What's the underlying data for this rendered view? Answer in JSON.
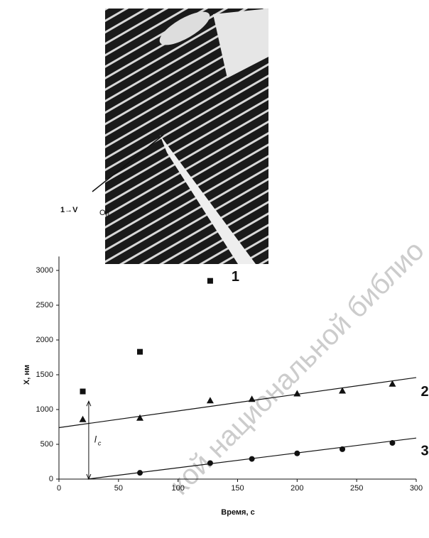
{
  "chart_data": {
    "type": "scatter",
    "image_label": "1→V",
    "image_label_sub": "O||",
    "x_label": "Время, c",
    "y_label": "X, нм",
    "xlim": [
      0,
      300
    ],
    "ylim": [
      0,
      3200
    ],
    "xticks": [
      0,
      50,
      100,
      150,
      200,
      250,
      300
    ],
    "yticks": [
      0,
      500,
      1000,
      1500,
      2000,
      2500,
      3000
    ],
    "series": [
      {
        "name": "1",
        "marker": "square",
        "color": "#111",
        "x": [
          20,
          68,
          127
        ],
        "values": [
          1260,
          1830,
          2850
        ]
      },
      {
        "name": "2",
        "marker": "triangle",
        "color": "#111",
        "x": [
          20,
          68,
          127,
          162,
          200,
          238,
          280
        ],
        "values": [
          860,
          880,
          1130,
          1150,
          1230,
          1270,
          1370
        ]
      },
      {
        "name": "3",
        "marker": "circle",
        "color": "#111",
        "x": [
          68,
          127,
          162,
          200,
          238,
          280
        ],
        "values": [
          90,
          230,
          290,
          370,
          430,
          520
        ]
      }
    ],
    "fit_lines": [
      {
        "x": [
          0,
          300
        ],
        "values": [
          740,
          1460
        ]
      },
      {
        "x": [
          24,
          300
        ],
        "values": [
          0,
          590
        ]
      }
    ],
    "annotation": {
      "label": "l",
      "sub": "c",
      "x": 25,
      "from": 0,
      "to": 1120
    },
    "watermark": "кой национальной библио"
  }
}
